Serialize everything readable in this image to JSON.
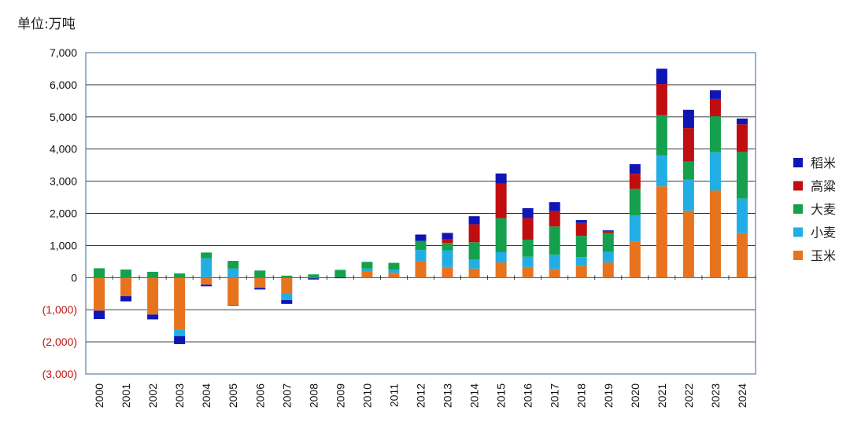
{
  "unit_label": "单位:万吨",
  "chart_data": {
    "type": "bar",
    "stacked": true,
    "ylabel": "单位:万吨",
    "ylim": [
      -3000,
      7000
    ],
    "yticks": [
      {
        "value": 7000,
        "label": "7,000"
      },
      {
        "value": 6000,
        "label": "6,000"
      },
      {
        "value": 5000,
        "label": "5,000"
      },
      {
        "value": 4000,
        "label": "4,000"
      },
      {
        "value": 3000,
        "label": "3,000"
      },
      {
        "value": 2000,
        "label": "2,000"
      },
      {
        "value": 1000,
        "label": "1,000"
      },
      {
        "value": 0,
        "label": "0"
      },
      {
        "value": -1000,
        "label": "(1,000)"
      },
      {
        "value": -2000,
        "label": "(2,000)"
      },
      {
        "value": -3000,
        "label": "(3,000)"
      }
    ],
    "negative_tick_color": "#c0140f",
    "positive_tick_color": "#111111",
    "grid": true,
    "legend_position": "right",
    "categories": [
      "2000",
      "2001",
      "2002",
      "2003",
      "2004",
      "2005",
      "2006",
      "2007",
      "2008",
      "2009",
      "2010",
      "2011",
      "2012",
      "2013",
      "2014",
      "2015",
      "2016",
      "2017",
      "2018",
      "2019",
      "2020",
      "2021",
      "2022",
      "2023",
      "2024"
    ],
    "series": [
      {
        "name": "玉米",
        "color": "#e8731f",
        "values": [
          -1030,
          -580,
          -1150,
          -1620,
          -220,
          -850,
          -300,
          -480,
          -20,
          0,
          180,
          150,
          510,
          330,
          280,
          470,
          330,
          270,
          370,
          470,
          1110,
          2840,
          2080,
          2710,
          1380
        ]
      },
      {
        "name": "小麦",
        "color": "#22aee5",
        "values": [
          0,
          0,
          0,
          -200,
          600,
          280,
          -20,
          -220,
          0,
          0,
          100,
          100,
          350,
          520,
          290,
          320,
          320,
          440,
          270,
          330,
          830,
          960,
          970,
          1190,
          1080
        ]
      },
      {
        "name": "大麦",
        "color": "#15a04d",
        "values": [
          290,
          250,
          180,
          130,
          180,
          240,
          220,
          60,
          100,
          240,
          210,
          210,
          280,
          230,
          530,
          1060,
          530,
          880,
          660,
          590,
          820,
          1250,
          560,
          1120,
          1450
        ]
      },
      {
        "name": "高粱",
        "color": "#c00d10",
        "values": [
          0,
          0,
          0,
          0,
          0,
          0,
          0,
          0,
          0,
          0,
          0,
          0,
          0,
          110,
          560,
          1070,
          670,
          480,
          400,
          50,
          470,
          970,
          1040,
          540,
          860
        ]
      },
      {
        "name": "稻米",
        "color": "#0f16b4",
        "values": [
          -260,
          -160,
          -150,
          -250,
          -50,
          -20,
          -50,
          -120,
          -40,
          -20,
          0,
          0,
          200,
          200,
          250,
          320,
          310,
          280,
          90,
          30,
          300,
          480,
          570,
          270,
          180
        ]
      }
    ]
  }
}
